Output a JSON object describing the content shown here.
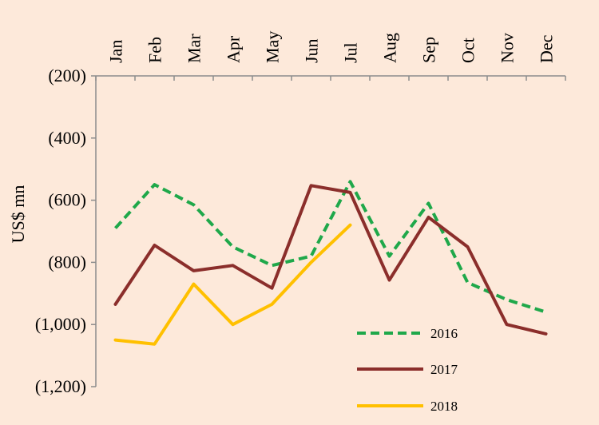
{
  "chart_data": {
    "type": "line",
    "title": "",
    "xlabel": "",
    "ylabel": "US$ mn",
    "categories": [
      "Jan",
      "Feb",
      "Mar",
      "Apr",
      "May",
      "Jun",
      "Jul",
      "Aug",
      "Sep",
      "Oct",
      "Nov",
      "Dec"
    ],
    "ylim": [
      -1200,
      -200
    ],
    "y_ticks": [
      -200,
      -400,
      -600,
      -800,
      -1000,
      -1200
    ],
    "y_tick_labels": [
      "(200)",
      "(400)",
      "(600)",
      "(800)",
      "(1,000)",
      "(1,200)"
    ],
    "x_axis_position": "top",
    "legend_position": "bottom-right",
    "series": [
      {
        "name": "2016",
        "color": "#1fa84a",
        "dash": "dashed",
        "values": [
          -690,
          -550,
          -615,
          -750,
          -810,
          -780,
          -540,
          -780,
          -610,
          -865,
          -920,
          -960
        ]
      },
      {
        "name": "2017",
        "color": "#8b2e2b",
        "dash": "solid",
        "values": [
          -935,
          -745,
          -827,
          -810,
          -883,
          -553,
          -575,
          -857,
          -655,
          -750,
          -1000,
          -1030
        ]
      },
      {
        "name": "2018",
        "color": "#ffc000",
        "dash": "solid",
        "values": [
          -1050,
          -1063,
          -870,
          -1000,
          -935,
          -800,
          -680,
          null,
          null,
          null,
          null,
          null
        ]
      }
    ]
  }
}
